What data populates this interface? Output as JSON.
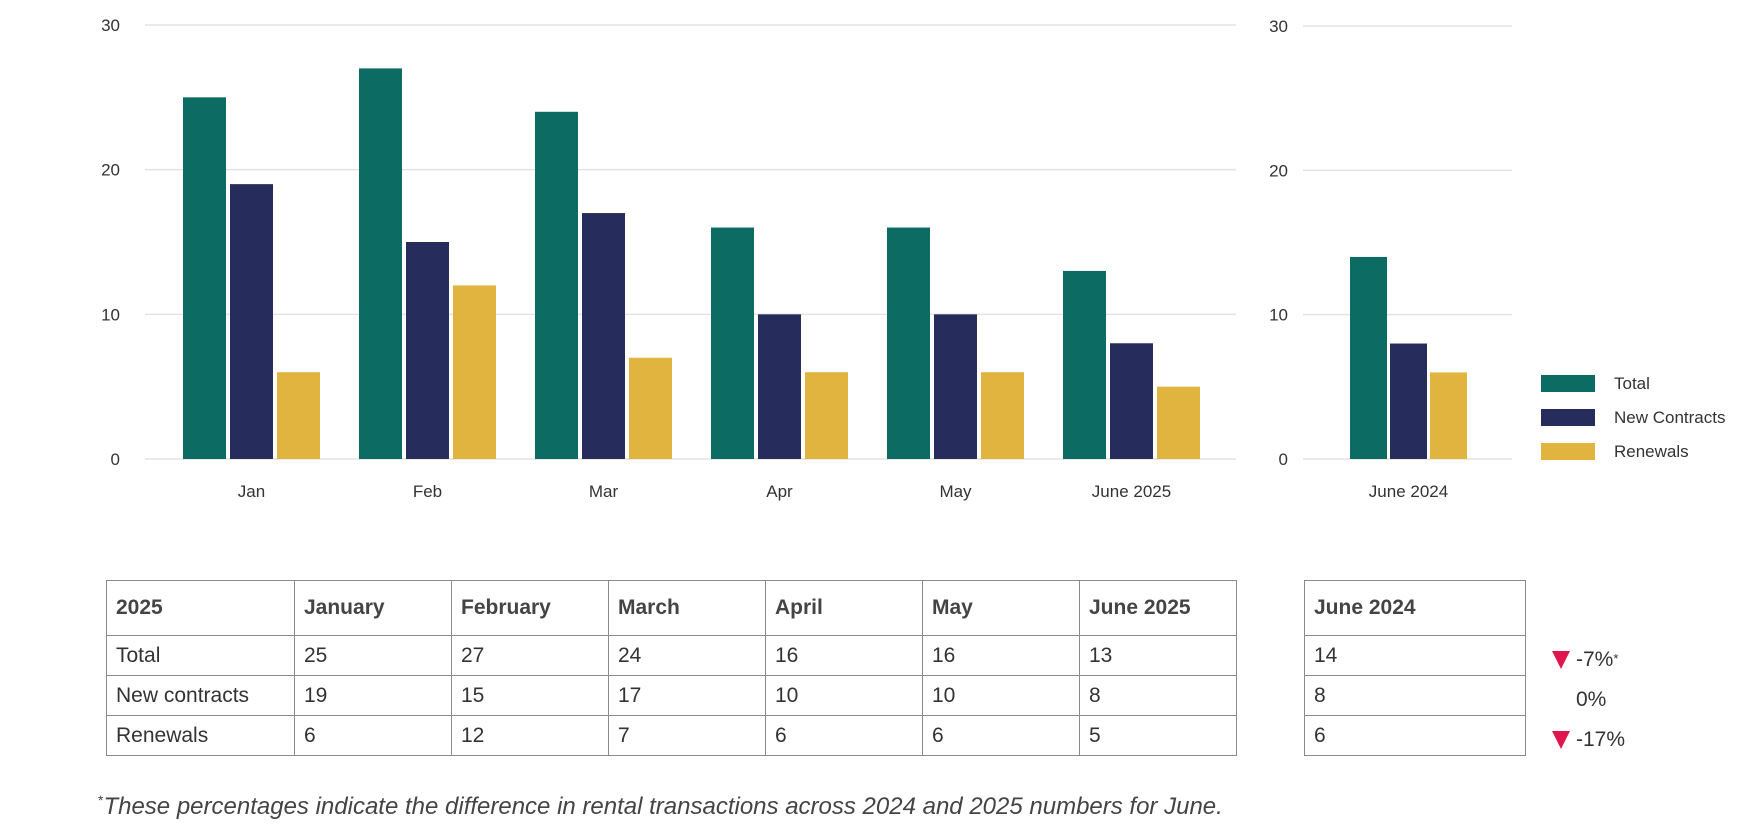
{
  "chart_data": [
    {
      "type": "bar",
      "categories": [
        "Jan",
        "Feb",
        "Mar",
        "Apr",
        "May",
        "June 2025"
      ],
      "series": [
        {
          "name": "Total",
          "values": [
            25,
            27,
            24,
            16,
            16,
            13
          ]
        },
        {
          "name": "New Contracts",
          "values": [
            19,
            15,
            17,
            10,
            10,
            8
          ]
        },
        {
          "name": "Renewals",
          "values": [
            6,
            12,
            7,
            6,
            6,
            5
          ]
        }
      ],
      "yticks": [
        0,
        10,
        20,
        30
      ],
      "ylim": [
        0,
        30
      ],
      "grid": true
    },
    {
      "type": "bar",
      "categories": [
        "June 2024"
      ],
      "series": [
        {
          "name": "Total",
          "values": [
            14
          ]
        },
        {
          "name": "New Contracts",
          "values": [
            8
          ]
        },
        {
          "name": "Renewals",
          "values": [
            6
          ]
        }
      ],
      "yticks": [
        0,
        10,
        20,
        30
      ],
      "ylim": [
        0,
        30
      ],
      "grid": true,
      "legend_position": "right"
    }
  ],
  "colors": {
    "total": "#0c6b63",
    "new_contracts": "#262c5c",
    "renewals": "#e0b43f",
    "decrease": "#e0174f",
    "grid": "#e3e3e3"
  },
  "legend": [
    "Total",
    "New Contracts",
    "Renewals"
  ],
  "table_main": {
    "headers": [
      "2025",
      "January",
      "February",
      "March",
      "April",
      "May",
      "June 2025"
    ],
    "rows": [
      {
        "label": "Total",
        "values": [
          "25",
          "27",
          "24",
          "16",
          "16",
          "13"
        ]
      },
      {
        "label": "New contracts",
        "values": [
          "19",
          "15",
          "17",
          "10",
          "10",
          "8"
        ]
      },
      {
        "label": "Renewals",
        "values": [
          "6",
          "12",
          "7",
          "6",
          "6",
          "5"
        ]
      }
    ]
  },
  "table_2024": {
    "header": "June 2024",
    "values": [
      "14",
      "8",
      "6"
    ]
  },
  "changes": [
    {
      "value": "-7%",
      "direction": "down",
      "star": "*"
    },
    {
      "value": "0%",
      "direction": "none",
      "star": ""
    },
    {
      "value": "-17%",
      "direction": "down",
      "star": ""
    }
  ],
  "footnote": {
    "star": "*",
    "text": "These percentages indicate the difference in rental transactions across 2024 and 2025 numbers for June."
  }
}
